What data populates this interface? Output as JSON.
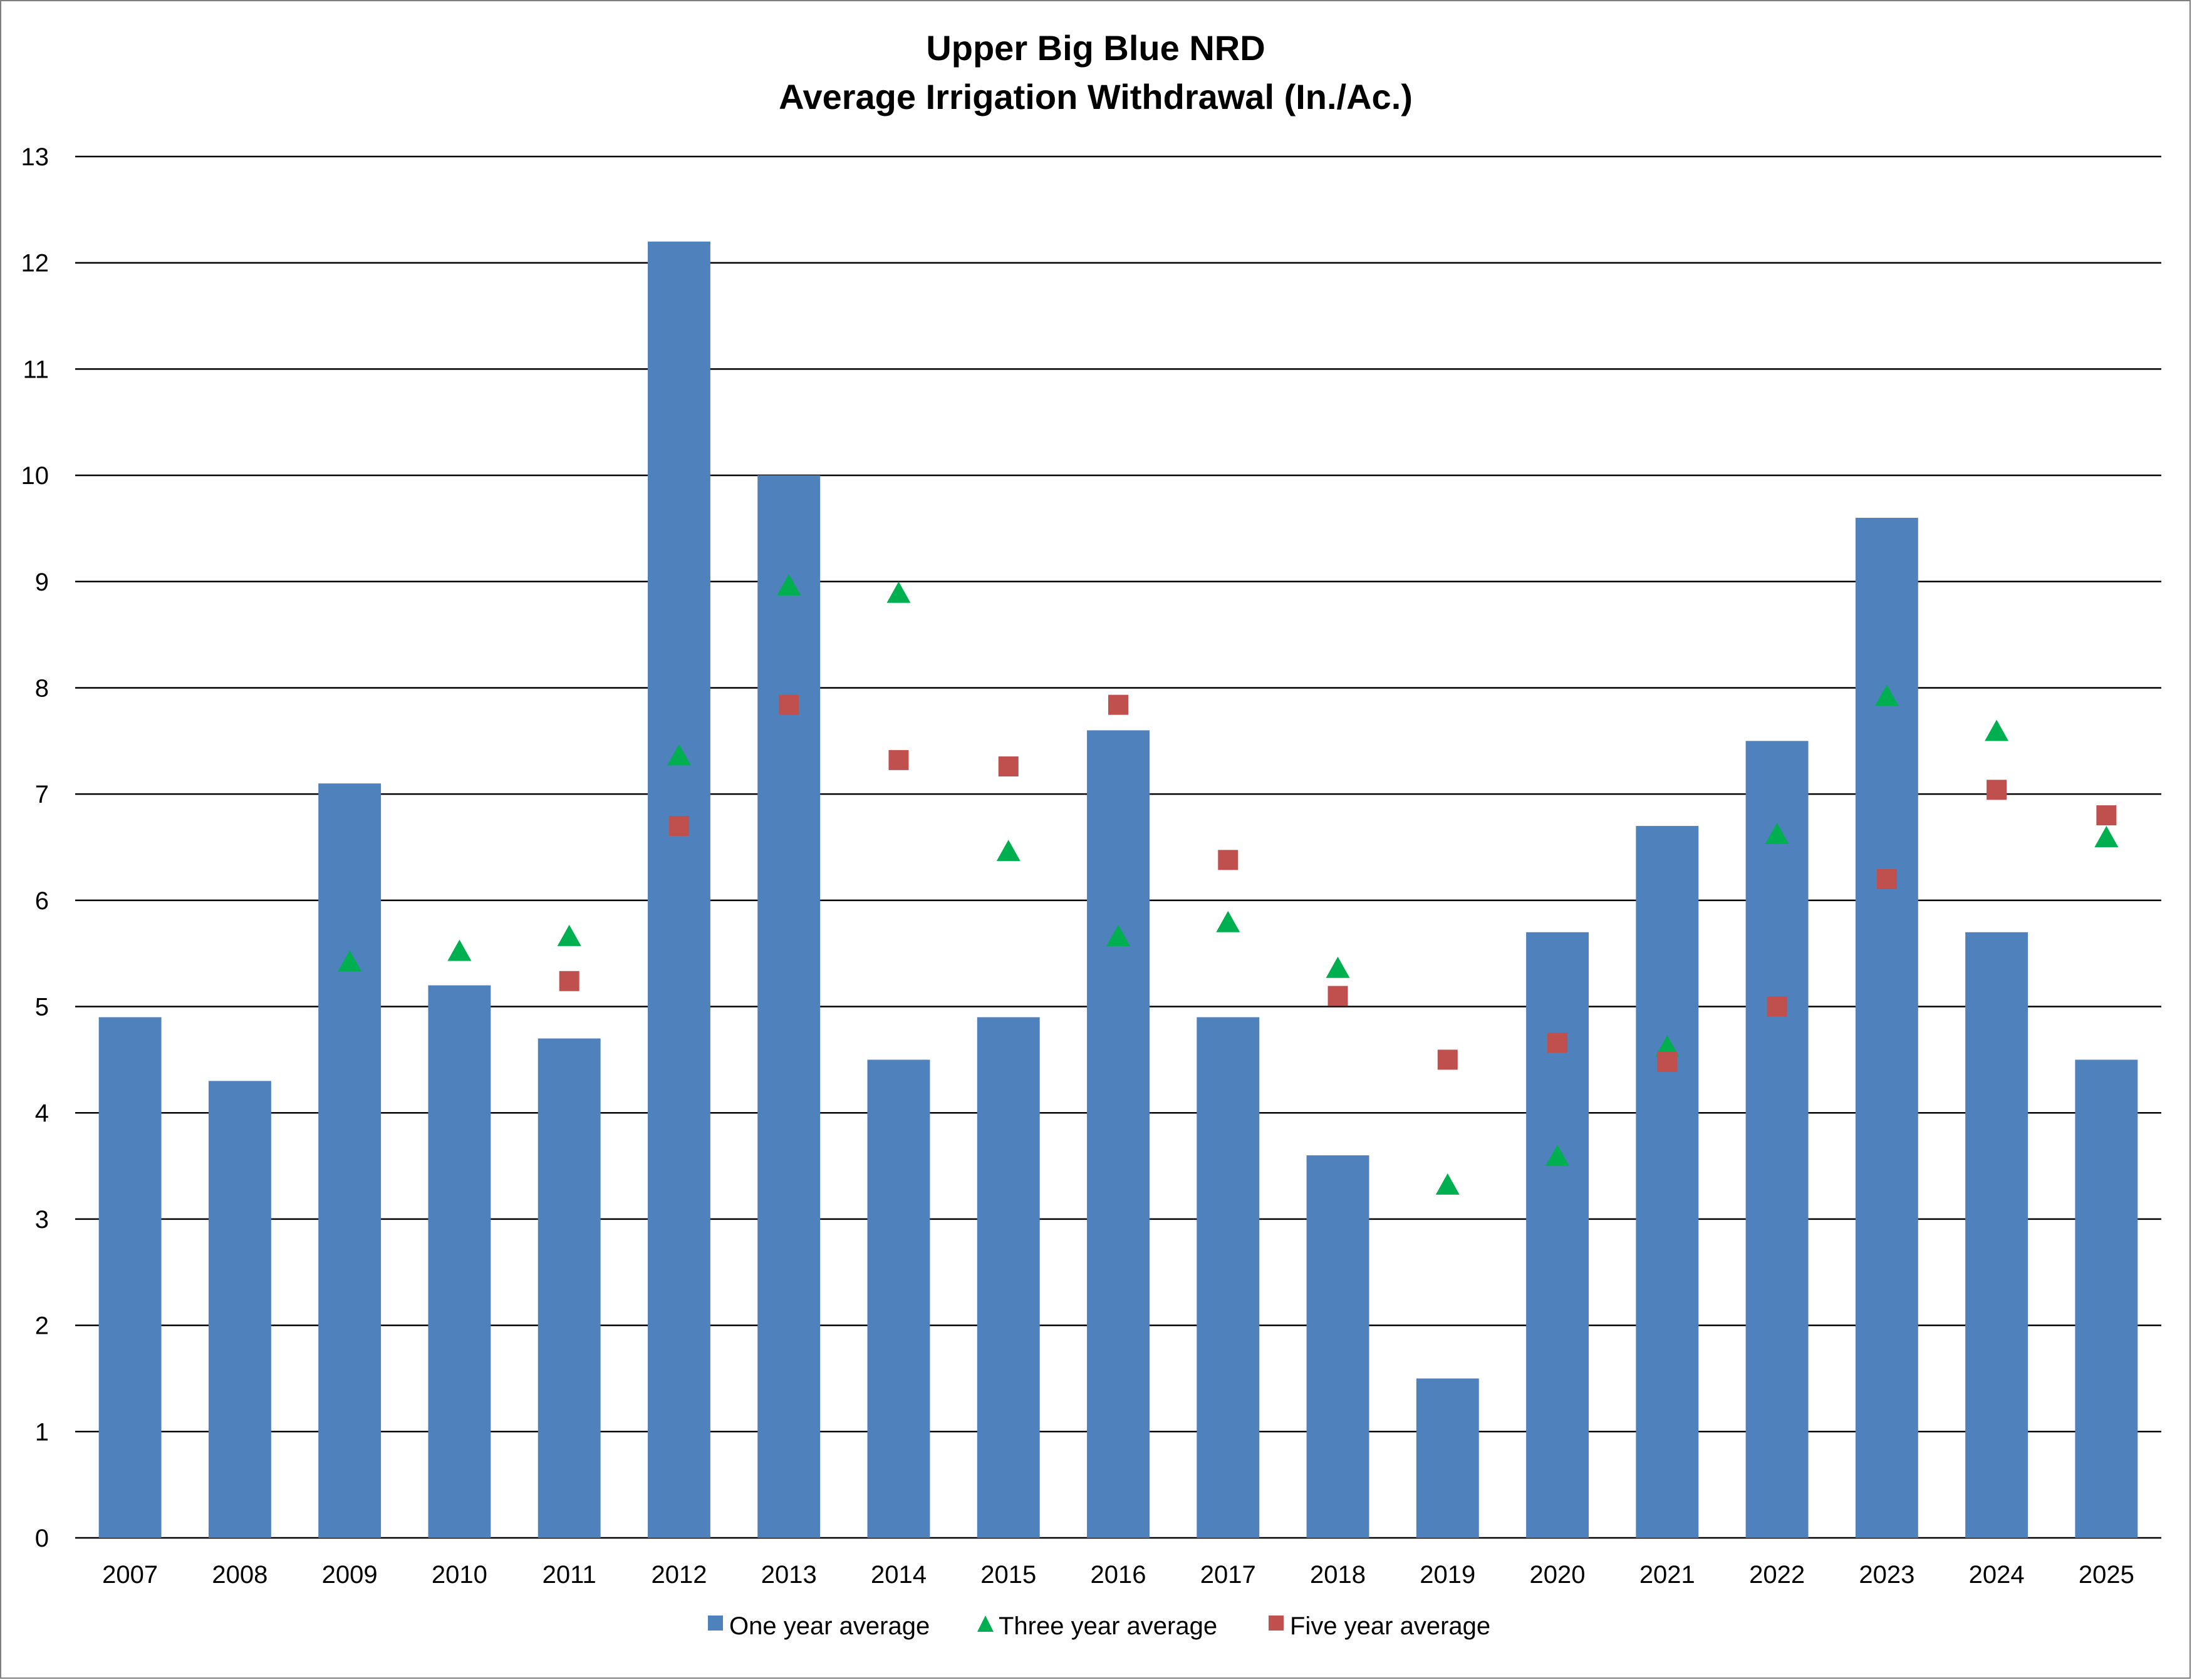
{
  "chart_data": {
    "type": "bar",
    "title": "Upper Big Blue NRD",
    "subtitle": "Average Irrigation Withdrawal (In./Ac.)",
    "xlabel": "",
    "ylabel": "",
    "ylim": [
      0,
      13
    ],
    "y_ticks": [
      "0",
      "1",
      "2",
      "3",
      "4",
      "5",
      "6",
      "7",
      "8",
      "9",
      "10",
      "11",
      "12",
      "13"
    ],
    "grid": true,
    "legend_position": "bottom",
    "categories": [
      "2007",
      "2008",
      "2009",
      "2010",
      "2011",
      "2012",
      "2013",
      "2014",
      "2015",
      "2016",
      "2017",
      "2018",
      "2019",
      "2020",
      "2021",
      "2022",
      "2023",
      "2024",
      "2025"
    ],
    "series": [
      {
        "name": "One year average",
        "type": "bar",
        "color": "#4f81bd",
        "marker": "square",
        "values": [
          4.9,
          4.3,
          7.1,
          5.2,
          4.7,
          12.2,
          10.0,
          4.5,
          4.9,
          7.6,
          4.9,
          3.6,
          1.5,
          5.7,
          6.7,
          7.5,
          9.6,
          5.7,
          4.5
        ]
      },
      {
        "name": "Three year average",
        "type": "scatter",
        "color": "#00b050",
        "marker": "triangle",
        "values": [
          null,
          null,
          5.43,
          5.53,
          5.67,
          7.37,
          8.97,
          8.9,
          6.47,
          5.67,
          5.8,
          5.37,
          3.33,
          3.6,
          4.63,
          6.63,
          7.93,
          7.6,
          6.6
        ]
      },
      {
        "name": "Five year average",
        "type": "scatter",
        "color": "#c0504d",
        "marker": "square",
        "values": [
          null,
          null,
          null,
          null,
          5.24,
          6.7,
          7.84,
          7.32,
          7.26,
          7.84,
          6.38,
          5.1,
          4.5,
          4.66,
          4.48,
          5.0,
          6.2,
          7.04,
          6.8
        ]
      }
    ]
  }
}
